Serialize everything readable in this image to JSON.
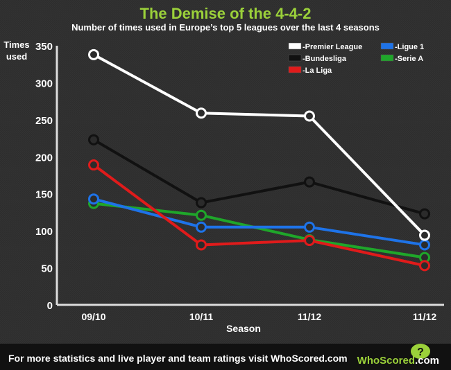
{
  "header": {
    "title": "The Demise of the 4-4-2",
    "subtitle": "Number of times used in Europe’s top 5 leagues over the last 4 seasons"
  },
  "footer": {
    "text": "For more statistics and live player and team ratings visit WhoScored.com",
    "brand": "WhoScored",
    "brand_suffix": ".com",
    "logo_mark": "?"
  },
  "colors": {
    "background": "#2b2b2b",
    "title": "#9bd13a",
    "axis": "#dddddd",
    "footer_bg": "#111111",
    "premier_league": "#ffffff",
    "bundesliga": "#111111",
    "la_liga": "#e01b1b",
    "ligue_1": "#1e73e8",
    "serie_a": "#1fa62a"
  },
  "chart_data": {
    "type": "line",
    "title": "The Demise of the 4-4-2",
    "subtitle": "Number of times used in Europe’s top 5 leagues over the last 4 seasons",
    "xlabel": "Season",
    "ylabel": "Times used",
    "ylabel_lines": [
      "Times",
      "used"
    ],
    "categories": [
      "09/10",
      "10/11",
      "11/12",
      "11/12"
    ],
    "ylim": [
      0,
      350
    ],
    "yticks": [
      0,
      50,
      100,
      150,
      200,
      250,
      300,
      350
    ],
    "grid": false,
    "legend_position": "top-right",
    "series": [
      {
        "name": "-Premier League",
        "color": "#ffffff",
        "values": [
          338,
          259,
          255,
          94
        ]
      },
      {
        "name": "-Bundesliga",
        "color": "#111111",
        "values": [
          223,
          138,
          166,
          123
        ]
      },
      {
        "name": "-La Liga",
        "color": "#e01b1b",
        "values": [
          189,
          81,
          87,
          53
        ]
      },
      {
        "name": "-Ligue 1",
        "color": "#1e73e8",
        "values": [
          143,
          105,
          105,
          81
        ]
      },
      {
        "name": "-Serie A",
        "color": "#1fa62a",
        "values": [
          137,
          121,
          88,
          64
        ]
      }
    ]
  }
}
